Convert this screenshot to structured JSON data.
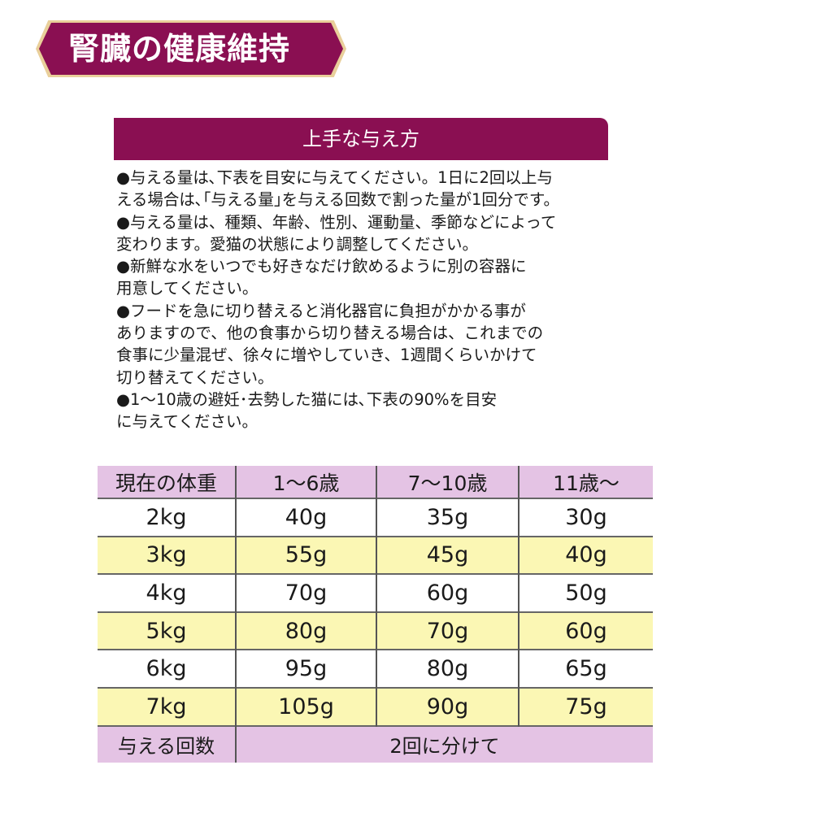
{
  "banner": {
    "title": "腎臓の健康維持"
  },
  "feeding": {
    "heading": "上手な与え方",
    "lines": [
      "●与える量は､下表を目安に与えてください。1日に2回以上与",
      "える場合は､｢与える量｣を与える回数で割った量が1回分です。",
      "●与える量は、種類、年齢、性別、運動量、季節などによって",
      "変わります。愛猫の状態により調整してください。",
      "●新鮮な水をいつでも好きなだけ飲めるように別の容器に",
      "用意してください。",
      "●フードを急に切り替えると消化器官に負担がかかる事が",
      "ありますので、他の食事から切り替える場合は、これまでの",
      "食事に少量混ぜ、徐々に増やしていき、1週間くらいかけて",
      "切り替えてください。",
      "●1～10歳の避妊･去勢した猫には､下表の90%を目安",
      "に与えてください。"
    ]
  },
  "table": {
    "headers": [
      "現在の体重",
      "1～6歳",
      "7～10歳",
      "11歳～"
    ],
    "rows": [
      [
        "2kg",
        "40g",
        "35g",
        "30g"
      ],
      [
        "3kg",
        "55g",
        "45g",
        "40g"
      ],
      [
        "4kg",
        "70g",
        "60g",
        "50g"
      ],
      [
        "5kg",
        "80g",
        "70g",
        "60g"
      ],
      [
        "6kg",
        "95g",
        "80g",
        "65g"
      ],
      [
        "7kg",
        "105g",
        "90g",
        "75g"
      ]
    ],
    "footer": {
      "label": "与える回数",
      "value": "2回に分けて"
    }
  },
  "colors": {
    "accent": "#8a0f52",
    "header_bg": "#e4c3e4",
    "alt_row": "#fbf7b4"
  }
}
